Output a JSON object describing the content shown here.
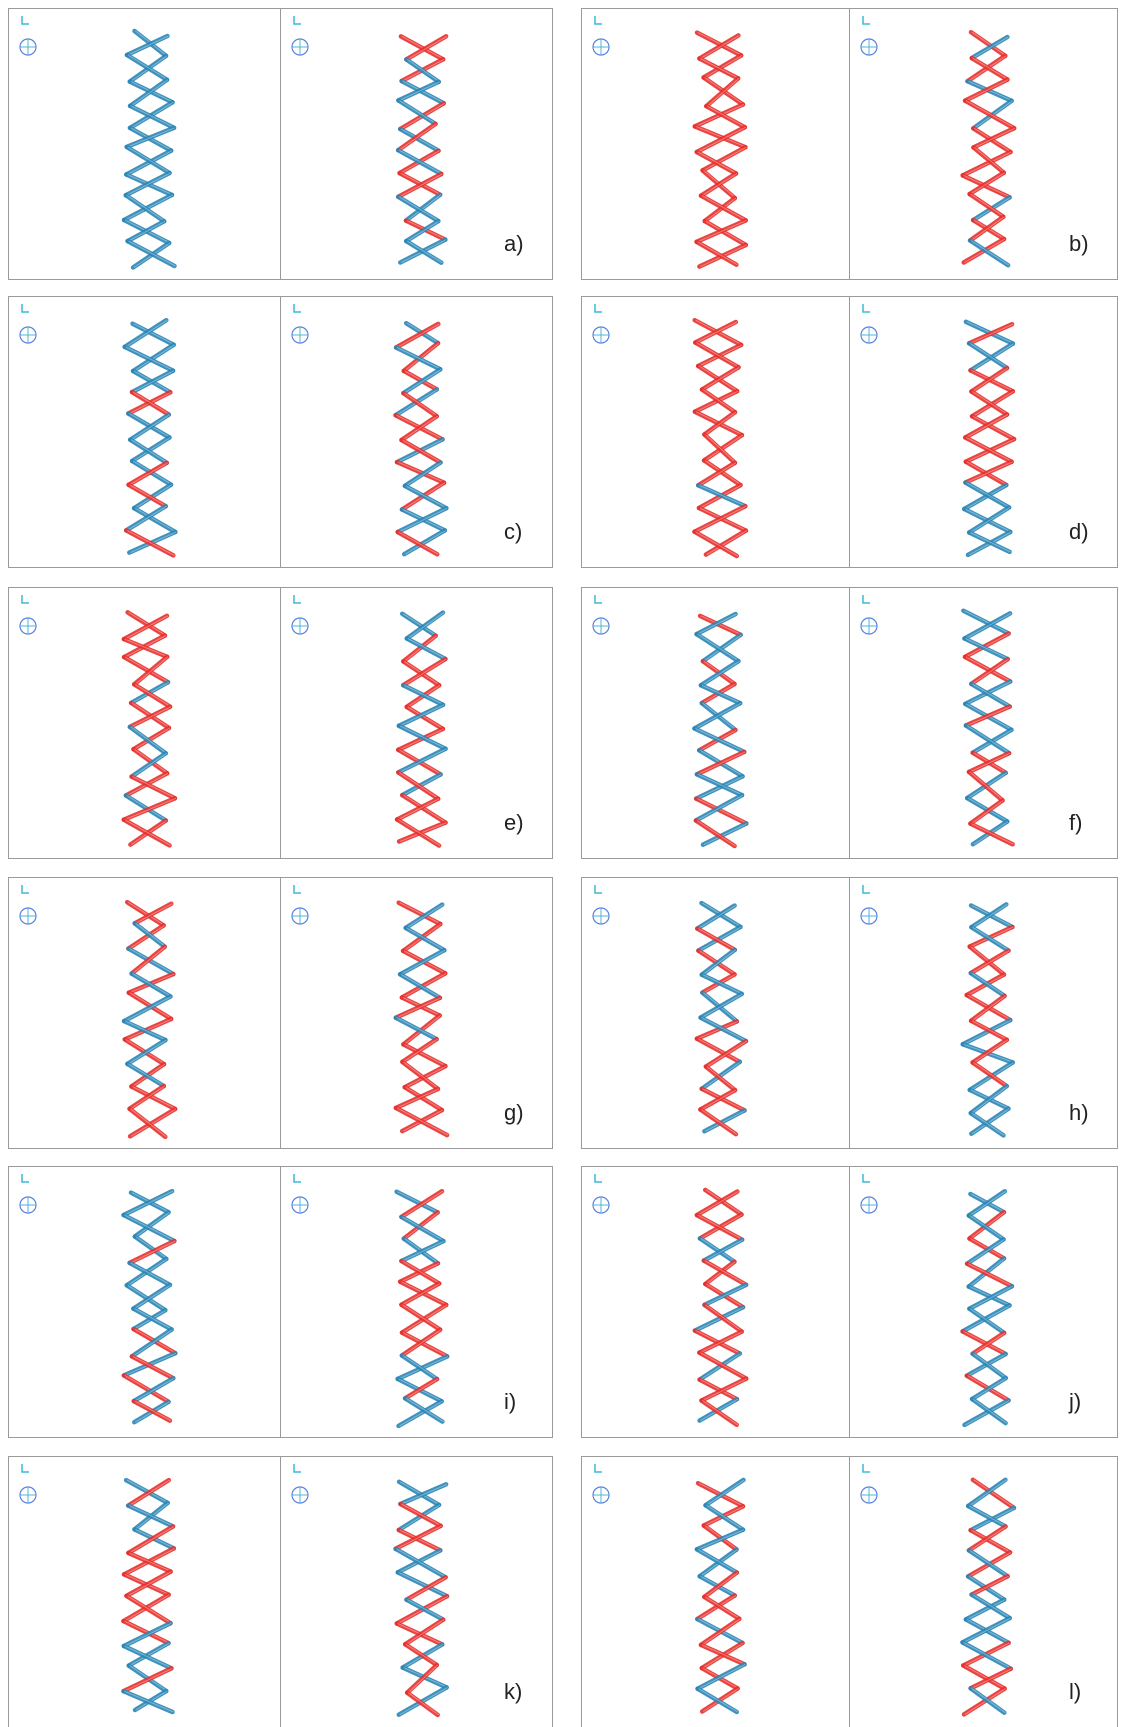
{
  "panels": [
    {
      "label": "a)"
    },
    {
      "label": "b)"
    },
    {
      "label": "c)"
    },
    {
      "label": "d)"
    },
    {
      "label": "e)"
    },
    {
      "label": "f)"
    },
    {
      "label": "g)"
    },
    {
      "label": "h)"
    },
    {
      "label": "i)"
    },
    {
      "label": "j)"
    },
    {
      "label": "k)"
    },
    {
      "label": "l)"
    }
  ]
}
